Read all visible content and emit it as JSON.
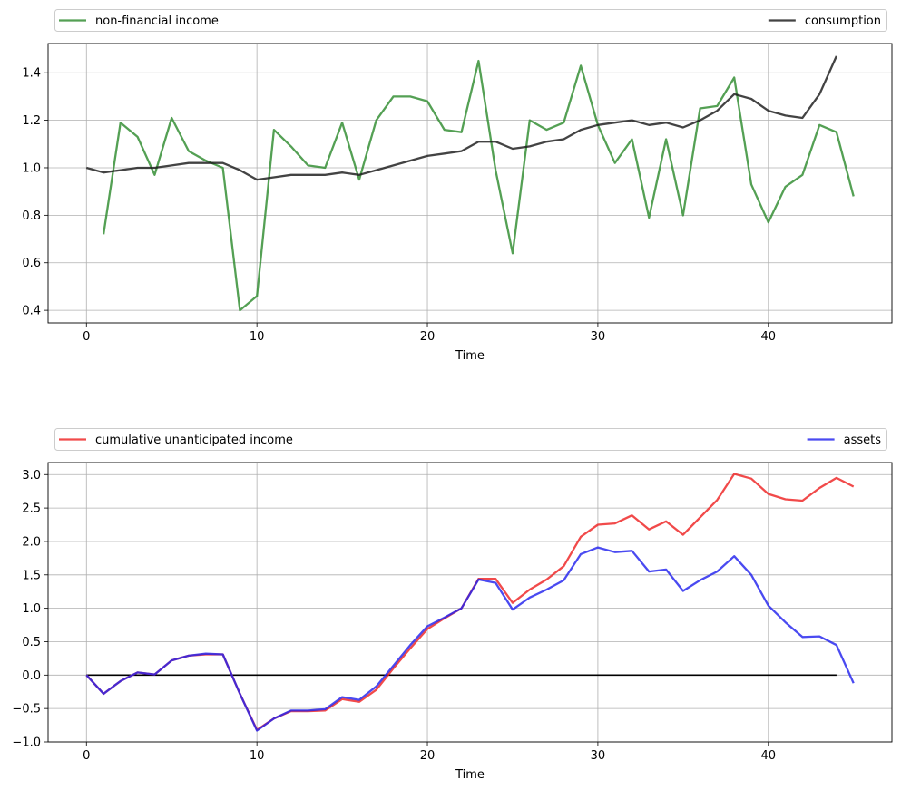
{
  "chart_data": [
    {
      "type": "line",
      "xlabel": "Time",
      "xlim": [
        -2.25,
        47.25
      ],
      "ylim": [
        0.347,
        1.523
      ],
      "xticks": [
        0,
        10,
        20,
        30,
        40
      ],
      "xtick_labels": [
        "0",
        "10",
        "20",
        "30",
        "40"
      ],
      "yticks": [
        0.4,
        0.6,
        0.8,
        1.0,
        1.2,
        1.4
      ],
      "ytick_labels": [
        "0.4",
        "0.6",
        "0.8",
        "1.0",
        "1.2",
        "1.4"
      ],
      "grid": true,
      "legend_placement": "above, spread across full width",
      "series": [
        {
          "name": "non-financial income",
          "color": "#2e8b2e",
          "x": [
            1,
            2,
            3,
            4,
            5,
            6,
            7,
            8,
            9,
            10,
            11,
            12,
            13,
            14,
            15,
            16,
            17,
            18,
            19,
            20,
            21,
            22,
            23,
            24,
            25,
            26,
            27,
            28,
            29,
            30,
            31,
            32,
            33,
            34,
            35,
            36,
            37,
            38,
            39,
            40,
            41,
            42,
            43,
            44,
            45
          ],
          "values": [
            0.72,
            1.19,
            1.13,
            0.97,
            1.21,
            1.07,
            1.03,
            1.0,
            0.4,
            0.46,
            1.16,
            1.09,
            1.01,
            1.0,
            1.19,
            0.95,
            1.2,
            1.3,
            1.3,
            1.28,
            1.16,
            1.15,
            1.45,
            0.99,
            0.64,
            1.2,
            1.16,
            1.19,
            1.43,
            1.18,
            1.02,
            1.12,
            0.79,
            1.12,
            0.8,
            1.25,
            1.26,
            1.38,
            0.93,
            0.77,
            0.92,
            0.97,
            1.18,
            1.15,
            0.88
          ]
        },
        {
          "name": "consumption",
          "color": "#1a1a1a",
          "x": [
            0,
            1,
            2,
            3,
            4,
            5,
            6,
            7,
            8,
            9,
            10,
            11,
            12,
            13,
            14,
            15,
            16,
            17,
            18,
            19,
            20,
            21,
            22,
            23,
            24,
            25,
            26,
            27,
            28,
            29,
            30,
            31,
            32,
            33,
            34,
            35,
            36,
            37,
            38,
            39,
            40,
            41,
            42,
            43,
            44
          ],
          "values": [
            1.0,
            0.98,
            0.99,
            1.0,
            1.0,
            1.01,
            1.02,
            1.02,
            1.02,
            0.99,
            0.95,
            0.96,
            0.97,
            0.97,
            0.97,
            0.98,
            0.97,
            0.99,
            1.01,
            1.03,
            1.05,
            1.06,
            1.07,
            1.11,
            1.11,
            1.08,
            1.09,
            1.11,
            1.12,
            1.16,
            1.18,
            1.19,
            1.2,
            1.18,
            1.19,
            1.17,
            1.2,
            1.24,
            1.31,
            1.29,
            1.24,
            1.22,
            1.21,
            1.31,
            1.47
          ]
        }
      ]
    },
    {
      "type": "line",
      "xlabel": "Time",
      "xlim": [
        -2.25,
        47.25
      ],
      "ylim": [
        -1.0,
        3.18
      ],
      "xticks": [
        0,
        10,
        20,
        30,
        40
      ],
      "xtick_labels": [
        "0",
        "10",
        "20",
        "30",
        "40"
      ],
      "yticks": [
        -1.0,
        -0.5,
        0.0,
        0.5,
        1.0,
        1.5,
        2.0,
        2.5,
        3.0
      ],
      "ytick_labels": [
        "−1.0",
        "−0.5",
        "0.0",
        "0.5",
        "1.0",
        "1.5",
        "2.0",
        "2.5",
        "3.0"
      ],
      "grid": true,
      "legend_placement": "above, spread across full width",
      "zero_line": {
        "x": [
          0,
          44
        ],
        "y": 0,
        "color": "#000000"
      },
      "series": [
        {
          "name": "cumulative unanticipated income",
          "color": "#ee2222",
          "x": [
            0,
            1,
            2,
            3,
            4,
            5,
            6,
            7,
            8,
            9,
            10,
            11,
            12,
            13,
            14,
            15,
            16,
            17,
            18,
            19,
            20,
            21,
            22,
            23,
            24,
            25,
            26,
            27,
            28,
            29,
            30,
            31,
            32,
            33,
            34,
            35,
            36,
            37,
            38,
            39,
            40,
            41,
            42,
            43,
            44,
            45
          ],
          "values": [
            0.0,
            -0.28,
            -0.09,
            0.04,
            0.01,
            0.22,
            0.29,
            0.31,
            0.31,
            -0.28,
            -0.82,
            -0.65,
            -0.54,
            -0.54,
            -0.53,
            -0.36,
            -0.4,
            -0.22,
            0.1,
            0.4,
            0.69,
            0.85,
            1.0,
            1.44,
            1.44,
            1.08,
            1.28,
            1.43,
            1.63,
            2.07,
            2.25,
            2.27,
            2.39,
            2.18,
            2.3,
            2.1,
            2.36,
            2.62,
            3.01,
            2.94,
            2.71,
            2.63,
            2.61,
            2.8,
            2.95,
            2.82
          ]
        },
        {
          "name": "assets",
          "color": "#2222ee",
          "x": [
            0,
            1,
            2,
            3,
            4,
            5,
            6,
            7,
            8,
            9,
            10,
            11,
            12,
            13,
            14,
            15,
            16,
            17,
            18,
            19,
            20,
            21,
            22,
            23,
            24,
            25,
            26,
            27,
            28,
            29,
            30,
            31,
            32,
            33,
            34,
            35,
            36,
            37,
            38,
            39,
            40,
            41,
            42,
            43,
            44,
            45
          ],
          "values": [
            0.0,
            -0.28,
            -0.09,
            0.04,
            0.01,
            0.22,
            0.29,
            0.32,
            0.31,
            -0.28,
            -0.83,
            -0.65,
            -0.53,
            -0.53,
            -0.51,
            -0.33,
            -0.37,
            -0.17,
            0.14,
            0.45,
            0.73,
            0.86,
            1.0,
            1.43,
            1.38,
            0.98,
            1.16,
            1.28,
            1.42,
            1.81,
            1.91,
            1.84,
            1.86,
            1.55,
            1.58,
            1.26,
            1.42,
            1.55,
            1.78,
            1.5,
            1.04,
            0.79,
            0.57,
            0.58,
            0.45,
            -0.12
          ]
        }
      ]
    }
  ]
}
